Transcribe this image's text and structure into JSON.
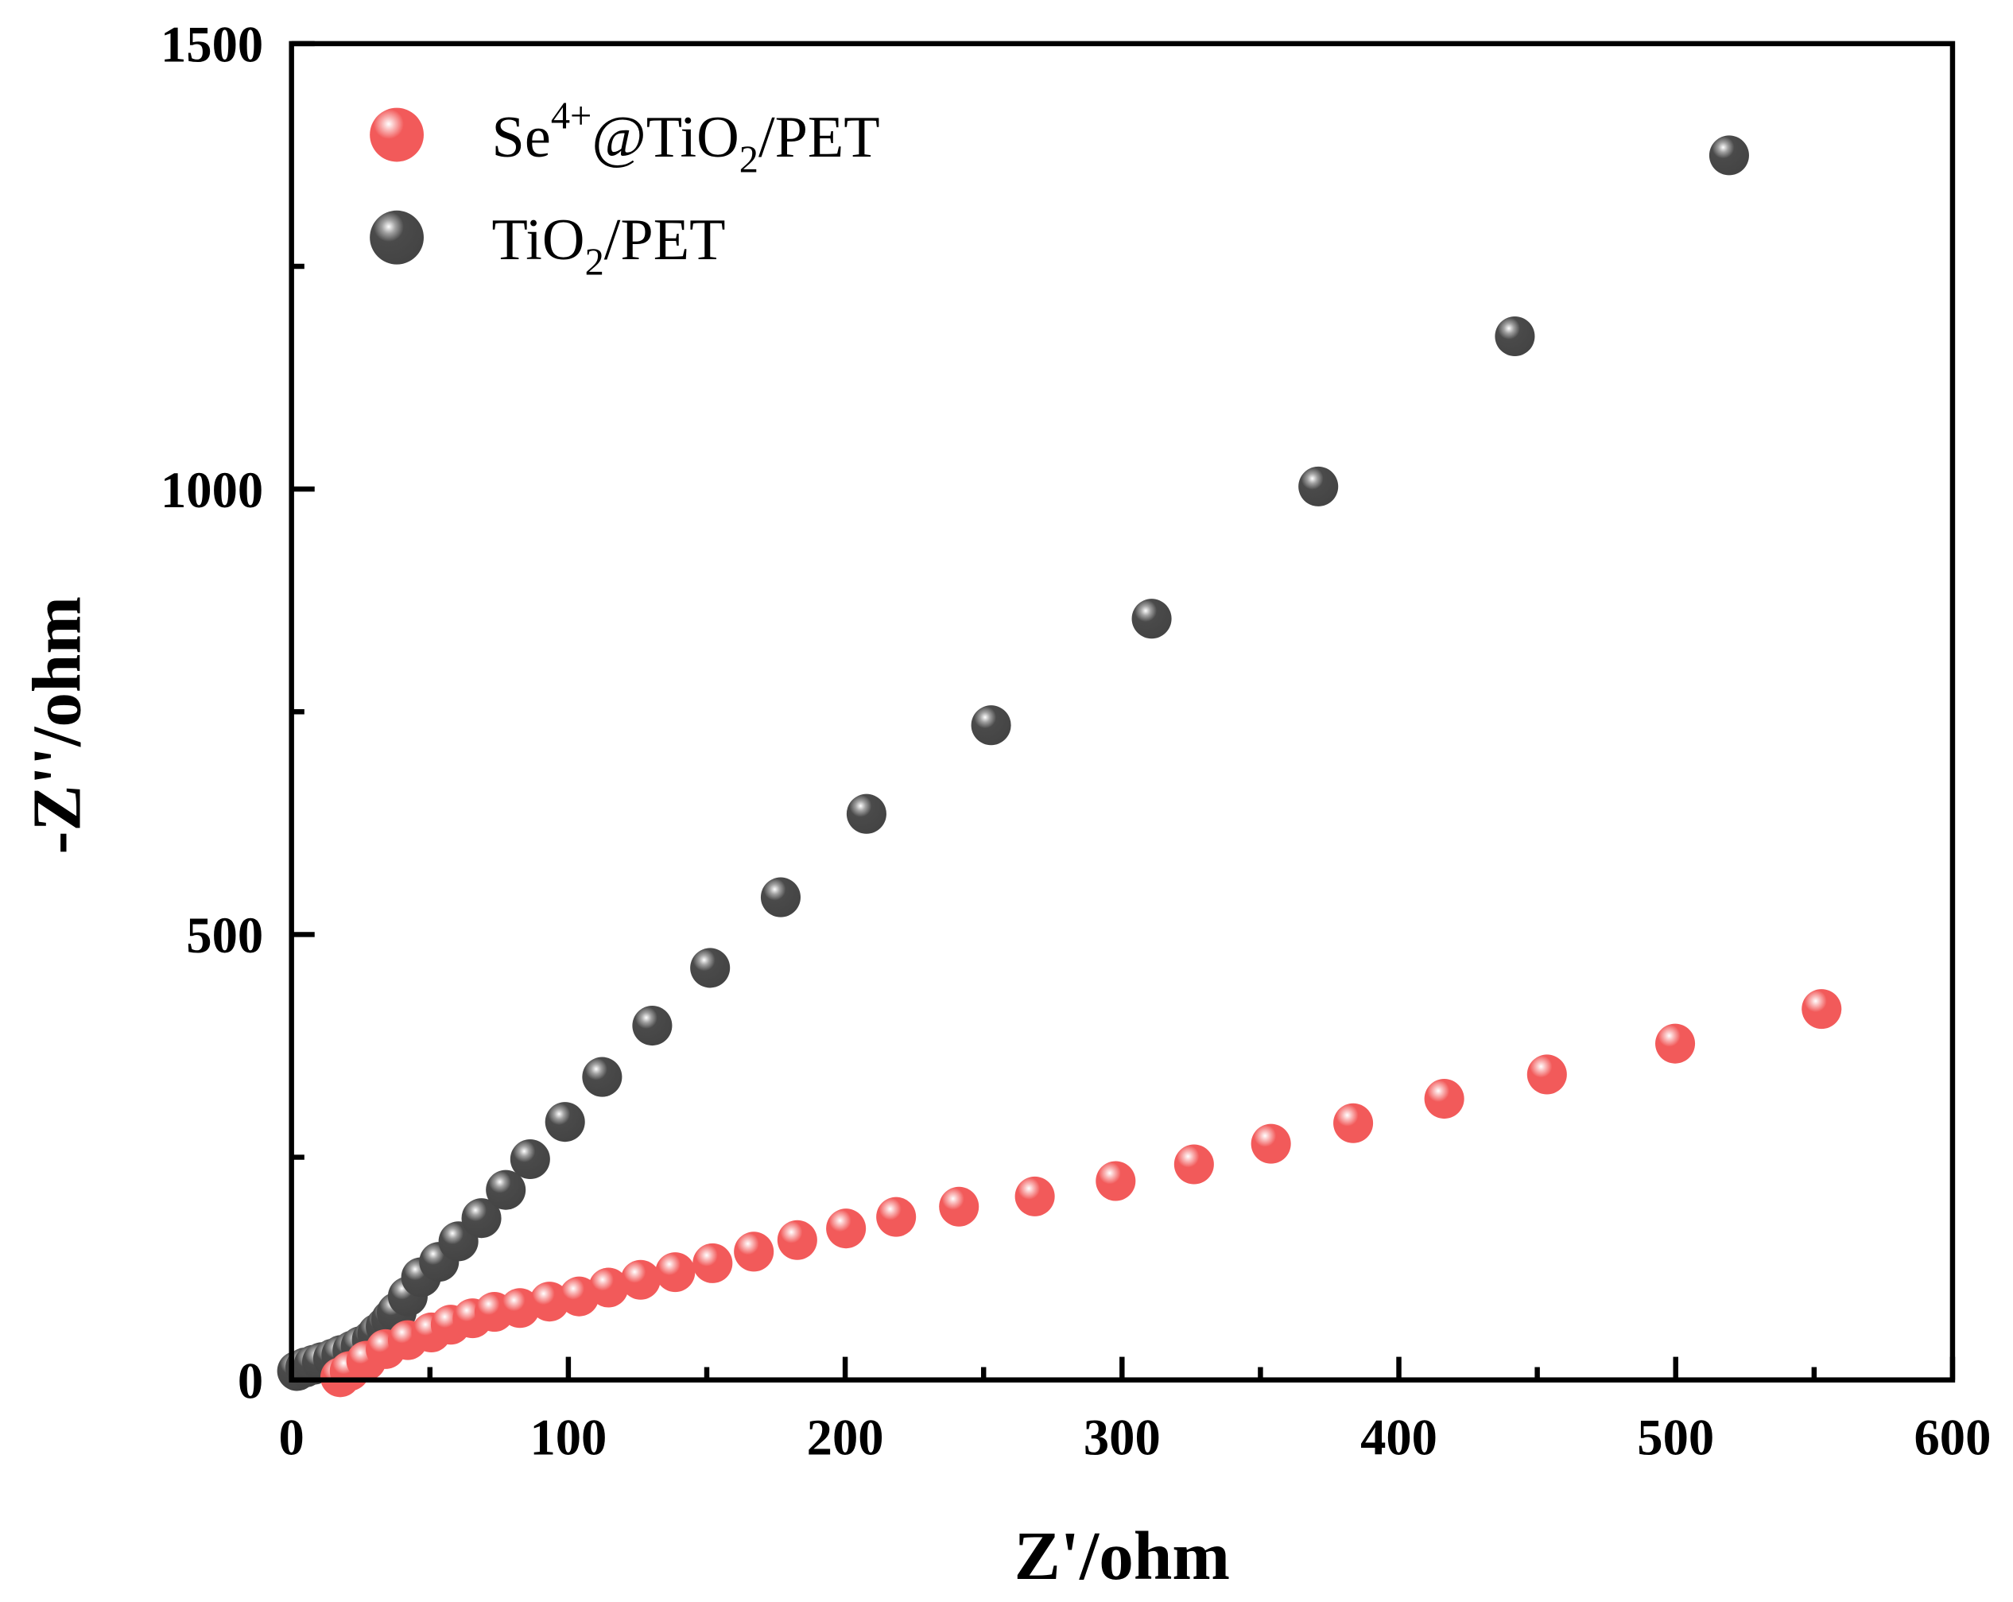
{
  "chart_data": {
    "type": "scatter",
    "title": "",
    "xlabel": "Z'/ohm",
    "ylabel": "-Z''/ohm",
    "xlim": [
      0,
      600
    ],
    "ylim": [
      0,
      1500
    ],
    "xticks": [
      "0",
      "100",
      "200",
      "300",
      "400",
      "500",
      "600"
    ],
    "yticks": [
      "0",
      "500",
      "1000",
      "1500"
    ],
    "xtick_values": [
      0,
      100,
      200,
      300,
      400,
      500,
      600
    ],
    "ytick_values": [
      0,
      500,
      1000,
      1500
    ],
    "grid": false,
    "legend_position": "top-left",
    "series": [
      {
        "name": "Se4+@TiO2/PET",
        "legend": {
          "base": "Se",
          "sup": "4+",
          "mid": "@TiO",
          "sub": "2",
          "end": "/PET"
        },
        "color": "#f25a5a",
        "x": [
          17.6,
          21,
          27,
          34,
          42,
          50.5,
          57.5,
          65.4,
          73.3,
          82.5,
          93.2,
          103.9,
          114.5,
          126.1,
          138.6,
          152.1,
          167,
          182.7,
          200.3,
          218.4,
          241.1,
          268.5,
          297.7,
          326,
          353.8,
          383.5,
          416.4,
          453.5,
          499.8,
          552.7
        ],
        "y": [
          3,
          10,
          21.6,
          34.6,
          44.7,
          53.3,
          62,
          69.2,
          76.4,
          80.7,
          87.9,
          93.7,
          103.7,
          112.4,
          121,
          131,
          144,
          157,
          170,
          183,
          194.5,
          206,
          223.3,
          242,
          265.1,
          288.2,
          315.6,
          342.9,
          377.5,
          416.4
        ]
      },
      {
        "name": "TiO2/PET",
        "legend": {
          "base": "TiO",
          "sub": "2",
          "end": "/PET"
        },
        "color": "#4a4a4a",
        "x": [
          2,
          5,
          8,
          11,
          15,
          18,
          22,
          25,
          29,
          31,
          34,
          36,
          38,
          42,
          46.8,
          53.3,
          60.3,
          68.6,
          77.4,
          86.2,
          98.8,
          112.2,
          130.3,
          151.2,
          176.7,
          207.7,
          252.7,
          310.7,
          370.9,
          441.9,
          519.3
        ],
        "y": [
          10,
          14,
          17,
          20,
          24,
          28,
          33,
          38,
          45,
          52,
          60,
          68,
          76,
          93.7,
          115.3,
          132.6,
          155.6,
          181.6,
          213.3,
          247.8,
          289.6,
          340.1,
          397.7,
          462.5,
          541.8,
          635.4,
          734.9,
          854.5,
          1002.9,
          1171.5,
          1374.6
        ]
      }
    ]
  }
}
